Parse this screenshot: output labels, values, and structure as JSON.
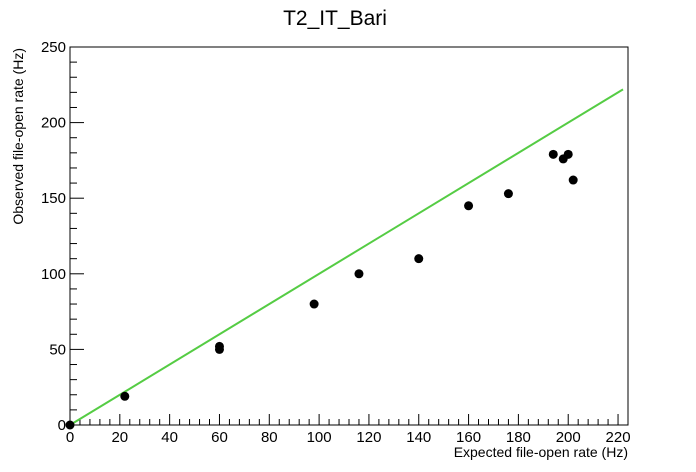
{
  "chart_data": {
    "type": "scatter",
    "title": "T2_IT_Bari",
    "xlabel": "Expected file-open rate (Hz)",
    "ylabel": "Observed file-open rate (Hz)",
    "xlim": [
      0,
      224
    ],
    "ylim": [
      0,
      250
    ],
    "x_ticks": [
      0,
      20,
      40,
      60,
      80,
      100,
      120,
      140,
      160,
      180,
      200,
      220
    ],
    "y_ticks": [
      0,
      50,
      100,
      150,
      200,
      250
    ],
    "grid": false,
    "marker_color": "#000000",
    "points": [
      {
        "x": 0,
        "y": 0
      },
      {
        "x": 22,
        "y": 19
      },
      {
        "x": 60,
        "y": 50
      },
      {
        "x": 60,
        "y": 52
      },
      {
        "x": 98,
        "y": 80
      },
      {
        "x": 116,
        "y": 100
      },
      {
        "x": 140,
        "y": 110
      },
      {
        "x": 160,
        "y": 145
      },
      {
        "x": 176,
        "y": 153
      },
      {
        "x": 194,
        "y": 179
      },
      {
        "x": 198,
        "y": 176
      },
      {
        "x": 200,
        "y": 179
      },
      {
        "x": 202,
        "y": 162
      }
    ],
    "reference_line": {
      "color": "#55cc44",
      "from": {
        "x": 0,
        "y": 0
      },
      "to": {
        "x": 222,
        "y": 222
      }
    }
  }
}
